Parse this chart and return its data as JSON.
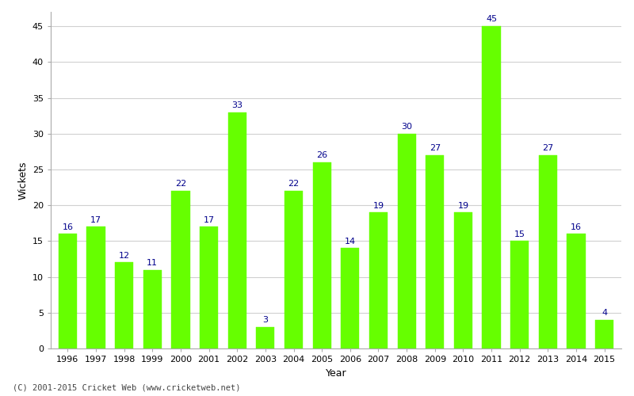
{
  "years": [
    1996,
    1997,
    1998,
    1999,
    2000,
    2001,
    2002,
    2003,
    2004,
    2005,
    2006,
    2007,
    2008,
    2009,
    2010,
    2011,
    2012,
    2013,
    2014,
    2015
  ],
  "wickets": [
    16,
    17,
    12,
    11,
    22,
    17,
    33,
    3,
    22,
    26,
    14,
    19,
    30,
    27,
    19,
    45,
    15,
    27,
    16,
    4
  ],
  "bar_color": "#66ff00",
  "bar_edge_color": "#66ff00",
  "label_color": "#00008B",
  "xlabel": "Year",
  "ylabel": "Wickets",
  "ylim": [
    0,
    47
  ],
  "yticks": [
    0,
    5,
    10,
    15,
    20,
    25,
    30,
    35,
    40,
    45
  ],
  "footnote": "(C) 2001-2015 Cricket Web (www.cricketweb.net)",
  "background_color": "#ffffff",
  "grid_color": "#d0d0d0",
  "label_fontsize": 8,
  "axis_label_fontsize": 9,
  "tick_fontsize": 8
}
